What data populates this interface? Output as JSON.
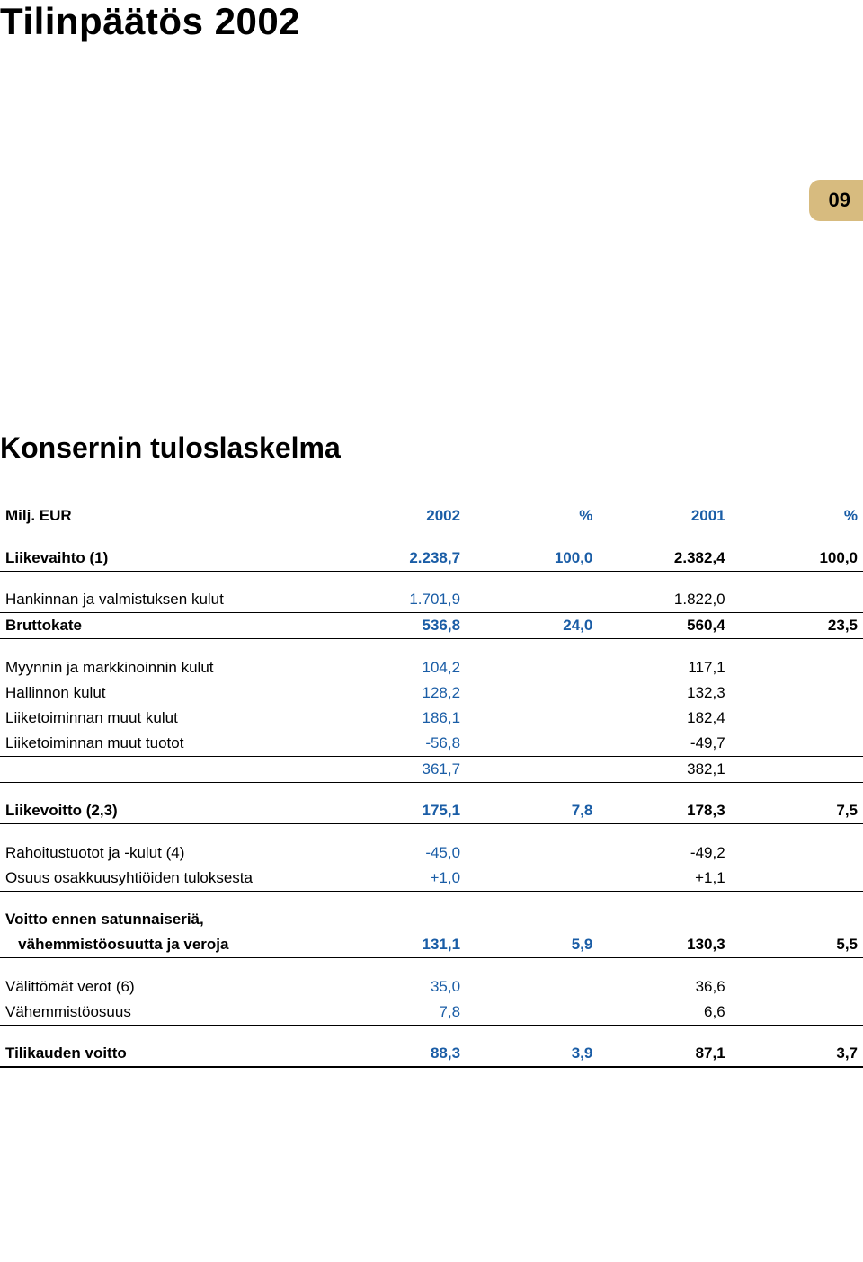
{
  "page": {
    "title": "Tilinpäätös 2002",
    "badge": "09",
    "section": "Konsernin tuloslaskelma"
  },
  "colors": {
    "accent_blue": "#1a5da6",
    "badge_bg": "#d7bb7f",
    "text": "#000000",
    "bg": "#ffffff"
  },
  "typography": {
    "title_fontsize": 42,
    "section_fontsize": 32,
    "body_fontsize": 17,
    "font_family": "Arial"
  },
  "table": {
    "header": {
      "label": "Milj. EUR",
      "cols": [
        "2002",
        "%",
        "2001",
        "%"
      ]
    },
    "rows": [
      {
        "label": "Liikevaihto (1)",
        "c1": "2.238,7",
        "c2": "100,0",
        "c3": "2.382,4",
        "c4": "100,0",
        "bold": true,
        "rule": "thin"
      },
      {
        "spacer": true
      },
      {
        "label": "Hankinnan ja valmistuksen kulut",
        "c1": "1.701,9",
        "c2": "",
        "c3": "1.822,0",
        "c4": "",
        "rule": "thin"
      },
      {
        "label": "Bruttokate",
        "c1": "536,8",
        "c2": "24,0",
        "c3": "560,4",
        "c4": "23,5",
        "bold": true,
        "rule": "thin"
      },
      {
        "spacer": true
      },
      {
        "label": "Myynnin ja markkinoinnin kulut",
        "c1": "104,2",
        "c2": "",
        "c3": "117,1",
        "c4": ""
      },
      {
        "label": "Hallinnon kulut",
        "c1": "128,2",
        "c2": "",
        "c3": "132,3",
        "c4": ""
      },
      {
        "label": "Liiketoiminnan muut kulut",
        "c1": "186,1",
        "c2": "",
        "c3": "182,4",
        "c4": ""
      },
      {
        "label": "Liiketoiminnan muut tuotot",
        "c1": "-56,8",
        "c2": "",
        "c3": "-49,7",
        "c4": "",
        "rule": "thin"
      },
      {
        "label": "",
        "c1": "361,7",
        "c2": "",
        "c3": "382,1",
        "c4": "",
        "rule": "thin"
      },
      {
        "spacer": true
      },
      {
        "label": "Liikevoitto (2,3)",
        "c1": "175,1",
        "c2": "7,8",
        "c3": "178,3",
        "c4": "7,5",
        "bold": true,
        "rule": "thin"
      },
      {
        "spacer": true
      },
      {
        "label": "Rahoitustuotot ja -kulut (4)",
        "c1": "-45,0",
        "c2": "",
        "c3": "-49,2",
        "c4": ""
      },
      {
        "label": "Osuus osakkuusyhtiöiden tuloksesta",
        "c1": "+1,0",
        "c2": "",
        "c3": "+1,1",
        "c4": "",
        "rule": "thin"
      },
      {
        "spacer": true
      },
      {
        "label": "Voitto ennen satunnaiseriä,",
        "c1": "",
        "c2": "",
        "c3": "",
        "c4": "",
        "bold": true
      },
      {
        "label": "   vähemmistöosuutta ja veroja",
        "c1": "131,1",
        "c2": "5,9",
        "c3": "130,3",
        "c4": "5,5",
        "bold": true,
        "rule": "thin"
      },
      {
        "spacer": true
      },
      {
        "label": "Välittömät verot (6)",
        "c1": "35,0",
        "c2": "",
        "c3": "36,6",
        "c4": ""
      },
      {
        "label": "Vähemmistöosuus",
        "c1": "7,8",
        "c2": "",
        "c3": "6,6",
        "c4": "",
        "rule": "thin"
      },
      {
        "spacer": true
      },
      {
        "label": "Tilikauden voitto",
        "c1": "88,3",
        "c2": "3,9",
        "c3": "87,1",
        "c4": "3,7",
        "bold": true,
        "rule": "thick"
      }
    ]
  }
}
